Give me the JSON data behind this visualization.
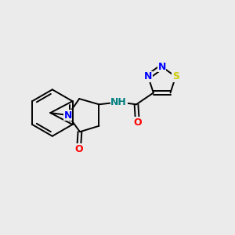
{
  "bg_color": "#ebebeb",
  "bond_color": "#000000",
  "atom_colors": {
    "N": "#0000ff",
    "O": "#ff0000",
    "S": "#cccc00",
    "NH": "#008080",
    "C": "#000000"
  },
  "font_size_atom": 9,
  "font_size_small": 7.5
}
